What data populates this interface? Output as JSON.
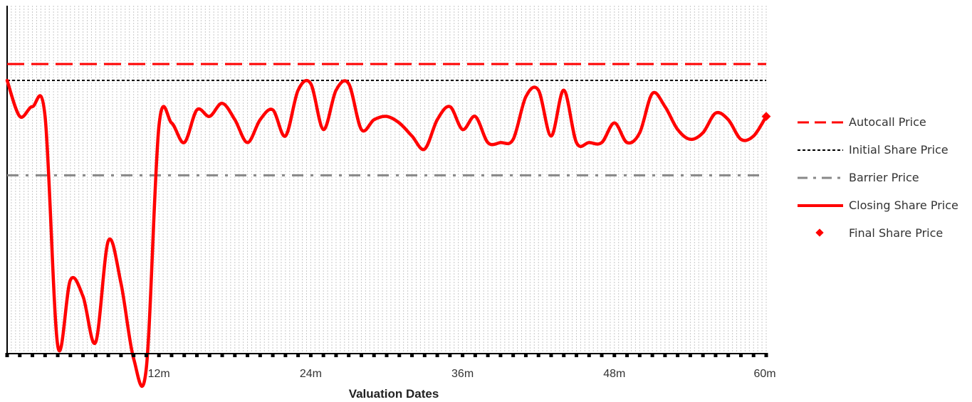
{
  "chart_data": {
    "type": "line",
    "xlabel": "Valuation Dates",
    "ylabel": "",
    "x_tick_labels": [
      "12m",
      "24m",
      "36m",
      "48m",
      "60m"
    ],
    "x_ticks": [
      12,
      24,
      36,
      48,
      60
    ],
    "xlim": [
      0,
      60
    ],
    "x_minor_count": 60,
    "ylim": [
      0,
      100
    ],
    "grid": "vertical dotted",
    "legend_position": "right",
    "levels": [
      {
        "name": "Autocall Price",
        "value": 80,
        "color": "#ff0000",
        "style": "dashed"
      },
      {
        "name": "Initial Share Price",
        "value": 75,
        "color": "#000000",
        "style": "dotted"
      },
      {
        "name": "Barrier Price",
        "value": 46,
        "color": "#888888",
        "style": "dashdot"
      }
    ],
    "series": [
      {
        "name": "Closing Share Price",
        "color": "#ff0000",
        "x": [
          0,
          1,
          2,
          3,
          4,
          5,
          6,
          7,
          8,
          9,
          10,
          11,
          12,
          13,
          14,
          15,
          16,
          17,
          18,
          19,
          20,
          21,
          22,
          23,
          24,
          25,
          26,
          27,
          28,
          29,
          30,
          31,
          32,
          33,
          34,
          35,
          36,
          37,
          38,
          39,
          40,
          41,
          42,
          43,
          44,
          45,
          46,
          47,
          48,
          49,
          50,
          51,
          52,
          53,
          54,
          55,
          56,
          57,
          58,
          59,
          60
        ],
        "values": [
          75,
          64,
          67,
          64,
          -6,
          14,
          9,
          -5,
          26,
          13,
          -10,
          -13,
          61,
          62,
          56,
          66,
          64,
          68,
          63,
          56,
          63,
          66,
          58,
          72,
          74,
          60,
          72,
          74,
          60,
          63,
          64,
          62,
          58,
          54,
          63,
          67,
          60,
          64,
          56,
          56,
          57,
          70,
          72,
          58,
          72,
          56,
          56,
          56,
          62,
          56,
          59,
          71,
          67,
          60,
          57,
          59,
          65,
          63,
          57,
          58,
          64
        ]
      }
    ],
    "final_point": {
      "name": "Final Share Price",
      "x": 60,
      "value": 64,
      "color": "#ff0000"
    }
  }
}
